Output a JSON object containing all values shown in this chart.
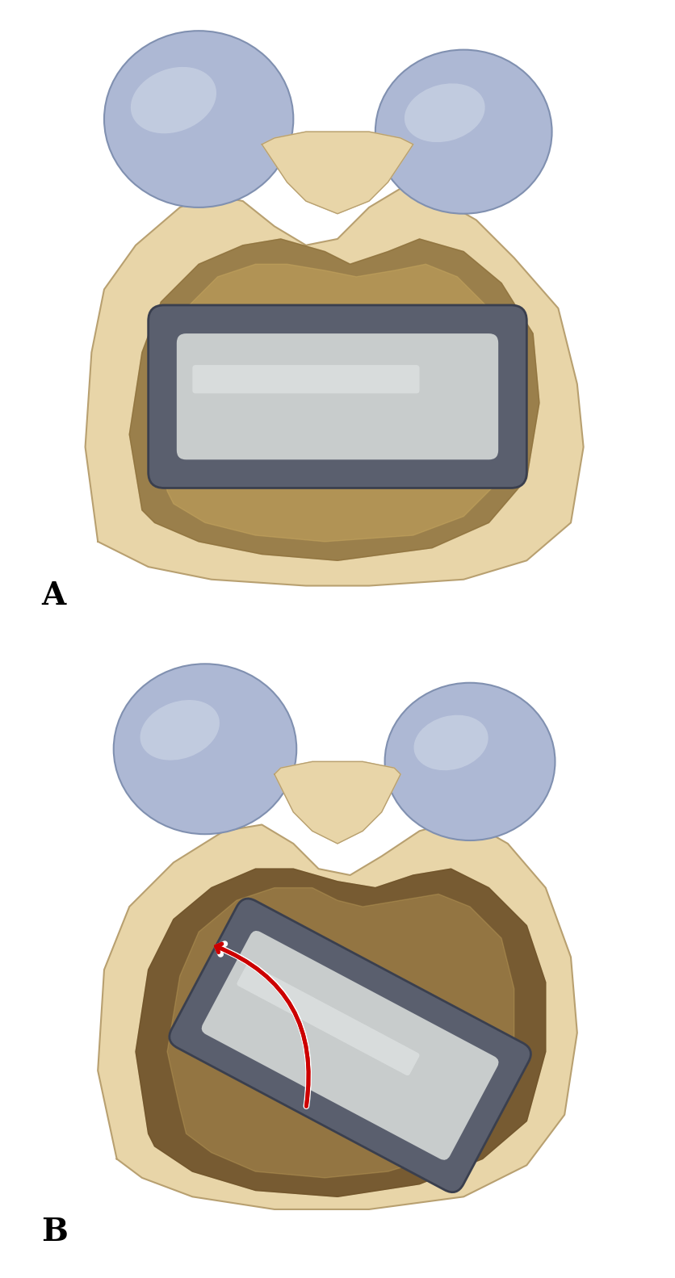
{
  "bg_color": "#ffffff",
  "bone_color": "#e8d5a8",
  "bone_dark": "#c9b882",
  "bone_shadow": "#5c4a2a",
  "condyle_color": "#adb8d4",
  "condyle_highlight": "#d0d8e8",
  "stem_outer": "#5a5f6e",
  "stem_inner": "#c8cccc",
  "stem_highlight": "#e0e4e4",
  "canal_dark": "#3a3020",
  "label_A": "A",
  "label_B": "B",
  "label_fontsize": 28,
  "arrow_color": "#cc0000",
  "figure_width": 8.36,
  "figure_height": 15.83
}
